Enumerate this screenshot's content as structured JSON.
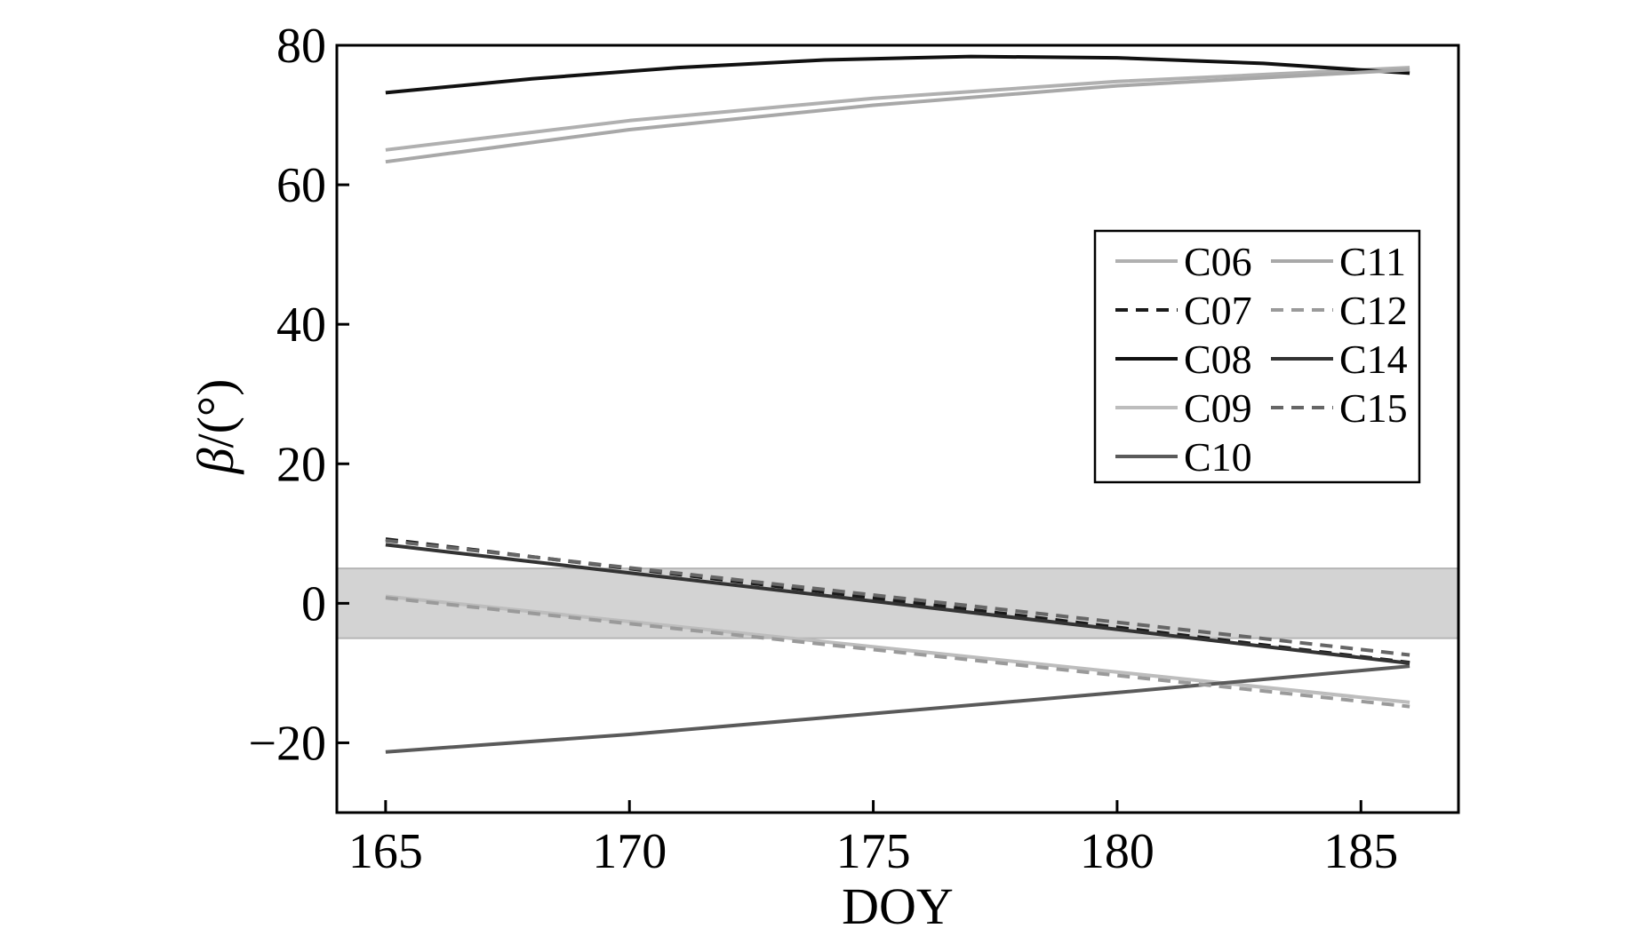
{
  "chart_data": {
    "type": "line",
    "xlabel": "DOY",
    "ylabel_symbol": "β",
    "ylabel_unit": "/(°)",
    "xlim": [
      164,
      187
    ],
    "ylim": [
      -30,
      80
    ],
    "xticks": [
      165,
      170,
      175,
      180,
      185
    ],
    "xtick_labels": [
      "165",
      "170",
      "175",
      "180",
      "185"
    ],
    "yticks": [
      -20,
      0,
      20,
      40,
      60,
      80
    ],
    "ytick_labels": [
      "−20",
      "0",
      "20",
      "40",
      "60",
      "80"
    ],
    "band": {
      "y0": -5,
      "y1": 5,
      "color": "#d3d3d3"
    },
    "legend_position": "right",
    "series": [
      {
        "name": "C06",
        "color": "#b0b0b0",
        "dash": "",
        "x": [
          165,
          170,
          175,
          180,
          186
        ],
        "y": [
          65,
          69.2,
          72.4,
          74.8,
          76.8
        ]
      },
      {
        "name": "C07",
        "color": "#1a1a1a",
        "dash": "14,9",
        "x": [
          165,
          186
        ],
        "y": [
          9.2,
          -8.5
        ]
      },
      {
        "name": "C08",
        "color": "#111111",
        "dash": "",
        "x": [
          165,
          168,
          171,
          174,
          177,
          180,
          183,
          186
        ],
        "y": [
          73.2,
          75.2,
          76.8,
          77.9,
          78.4,
          78.2,
          77.4,
          76
        ]
      },
      {
        "name": "C09",
        "color": "#bdbdbd",
        "dash": "",
        "x": [
          165,
          186
        ],
        "y": [
          1,
          -14.2
        ]
      },
      {
        "name": "C10",
        "color": "#5a5a5a",
        "dash": "",
        "x": [
          165,
          170,
          175,
          180,
          186
        ],
        "y": [
          -21.3,
          -18.8,
          -15.8,
          -12.8,
          -9
        ]
      },
      {
        "name": "C11",
        "color": "#a8a8a8",
        "dash": "",
        "x": [
          165,
          170,
          175,
          180,
          186
        ],
        "y": [
          63.3,
          67.9,
          71.4,
          74.2,
          76.5
        ]
      },
      {
        "name": "C12",
        "color": "#9a9a9a",
        "dash": "14,9",
        "x": [
          165,
          186
        ],
        "y": [
          0.8,
          -14.8
        ]
      },
      {
        "name": "C14",
        "color": "#333333",
        "dash": "",
        "x": [
          165,
          186
        ],
        "y": [
          8.4,
          -8.6
        ]
      },
      {
        "name": "C15",
        "color": "#666666",
        "dash": "14,9",
        "x": [
          165,
          186
        ],
        "y": [
          9,
          -7.4
        ]
      }
    ]
  }
}
